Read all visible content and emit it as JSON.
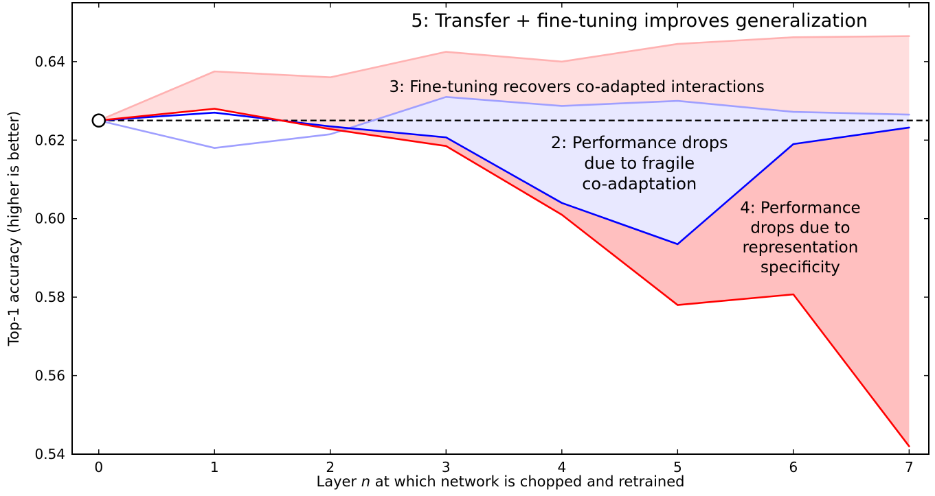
{
  "figure": {
    "background": "#ffffff"
  },
  "chart_data": {
    "type": "line",
    "title": "",
    "xlabel_parts": {
      "prefix": "Layer ",
      "italic": "n",
      "suffix": " at which network is chopped and retrained"
    },
    "ylabel": "Top-1 accuracy (higher is better)",
    "xlim": [
      -0.23,
      7.17
    ],
    "ylim": [
      0.54,
      0.655
    ],
    "grid": false,
    "legend": "none (labels are in-plot annotations)",
    "xticks": [
      "0",
      "1",
      "2",
      "3",
      "4",
      "5",
      "6",
      "7"
    ],
    "xtick_values": [
      0,
      1,
      2,
      3,
      4,
      5,
      6,
      7
    ],
    "yticks": [
      "0.54",
      "0.56",
      "0.58",
      "0.60",
      "0.62",
      "0.64"
    ],
    "ytick_values": [
      0.54,
      0.56,
      0.58,
      0.6,
      0.62,
      0.64
    ],
    "x": [
      0,
      1,
      2,
      3,
      4,
      5,
      6,
      7
    ],
    "baseline": {
      "value": 0.625,
      "color": "#000000",
      "dash": [
        9,
        5
      ],
      "width": 2.2,
      "marker": {
        "x": 0,
        "shape": "open-circle",
        "radius": 9,
        "fill": "#ffffff",
        "stroke": "#000000"
      }
    },
    "series": [
      {
        "id": "transfer-plus-finetune",
        "annotation_ref": "5",
        "color": "#ffb1b1",
        "width": 2.6,
        "values": [
          0.625,
          0.6375,
          0.636,
          0.6425,
          0.64,
          0.6445,
          0.6462,
          0.6465
        ]
      },
      {
        "id": "finetune-recovers",
        "annotation_ref": "3",
        "color": "#9f9fff",
        "width": 2.6,
        "values": [
          0.625,
          0.618,
          0.6215,
          0.631,
          0.6287,
          0.63,
          0.6272,
          0.6265
        ]
      },
      {
        "id": "fragile-coadaptation",
        "annotation_ref": "2",
        "color": "#0000ff",
        "width": 2.6,
        "values": [
          0.625,
          0.627,
          0.6235,
          0.6207,
          0.604,
          0.5935,
          0.619,
          0.6232
        ]
      },
      {
        "id": "representation-specificity",
        "annotation_ref": "4",
        "color": "#ff0000",
        "width": 2.6,
        "values": [
          0.625,
          0.628,
          0.6228,
          0.6185,
          0.601,
          0.578,
          0.5807,
          0.542
        ]
      }
    ],
    "regions": [
      {
        "id": "region-5-transfer-finetune",
        "upper": "transfer-plus-finetune",
        "lower": [
          "representation-specificity",
          "finetune-recovers"
        ],
        "color": "rgba(255,70,70,0.18)"
      },
      {
        "id": "region-2-fragile-coadaptation",
        "upper": "finetune-recovers",
        "lower": [
          "fragile-coadaptation"
        ],
        "color": "rgba(80,80,255,0.13)"
      },
      {
        "id": "region-4-representation-specificity",
        "upper": "fragile-coadaptation",
        "lower": [
          "representation-specificity"
        ],
        "color": "rgba(255,60,60,0.33)"
      }
    ],
    "annotations": [
      {
        "id": "5",
        "x": 4.67,
        "y": 0.6505,
        "font_size": 27,
        "lines": [
          "5: Transfer + fine-tuning improves generalization"
        ]
      },
      {
        "id": "3",
        "x": 4.13,
        "y": 0.6337,
        "font_size": 23,
        "lines": [
          "3: Fine-tuning recovers co-adapted interactions"
        ]
      },
      {
        "id": "2",
        "x": 4.67,
        "y": 0.6142,
        "font_size": 24,
        "lines": [
          "2: Performance drops",
          "due to fragile",
          "co-adaptation"
        ]
      },
      {
        "id": "4",
        "x": 6.06,
        "y": 0.5953,
        "font_size": 23,
        "lines": [
          "4: Performance",
          "drops due to",
          "representation",
          "specificity"
        ]
      }
    ]
  }
}
